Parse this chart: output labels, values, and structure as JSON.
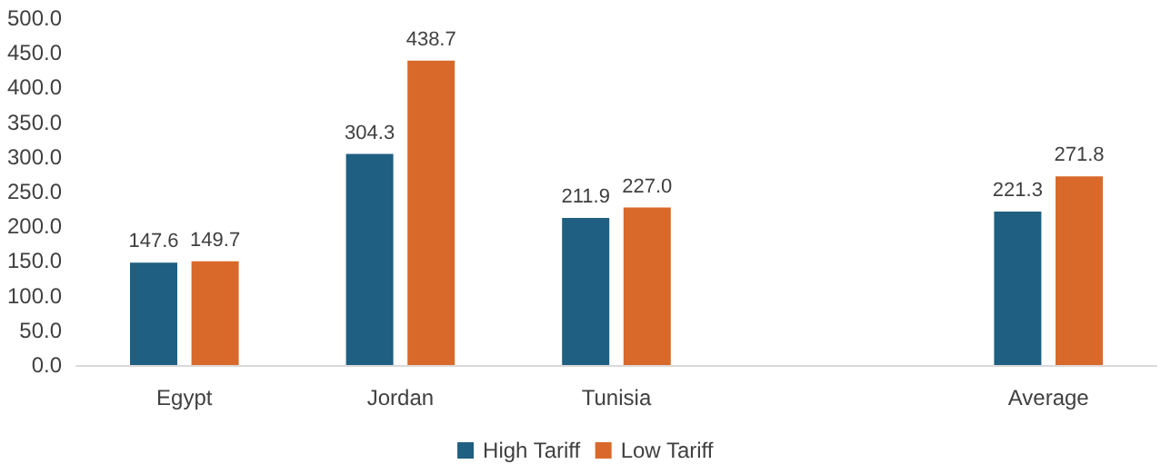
{
  "chart_data": {
    "type": "bar",
    "categories": [
      "Egypt",
      "Jordan",
      "Tunisia",
      null,
      "Average"
    ],
    "series": [
      {
        "name": "High Tariff",
        "color": "#1f5f82",
        "values": [
          147.6,
          304.3,
          211.9,
          null,
          221.3
        ],
        "value_labels": [
          "147.6",
          "304.3",
          "211.9",
          null,
          "221.3"
        ]
      },
      {
        "name": "Low Tariff",
        "color": "#d9692a",
        "values": [
          149.7,
          438.7,
          227.0,
          null,
          271.8
        ],
        "value_labels": [
          "149.7",
          "438.7",
          "227.0",
          null,
          "271.8"
        ]
      }
    ],
    "ylim": [
      0,
      500
    ],
    "yticks": [
      {
        "value": 0,
        "label": "0.0"
      },
      {
        "value": 50,
        "label": "50.0"
      },
      {
        "value": 100,
        "label": "100.0"
      },
      {
        "value": 150,
        "label": "150.0"
      },
      {
        "value": 200,
        "label": "200.0"
      },
      {
        "value": 250,
        "label": "250.0"
      },
      {
        "value": 300,
        "label": "300.0"
      },
      {
        "value": 350,
        "label": "350.0"
      },
      {
        "value": 400,
        "label": "400.0"
      },
      {
        "value": 450,
        "label": "450.0"
      },
      {
        "value": 500,
        "label": "500.0"
      }
    ],
    "grid": false,
    "legend": "bottom"
  }
}
